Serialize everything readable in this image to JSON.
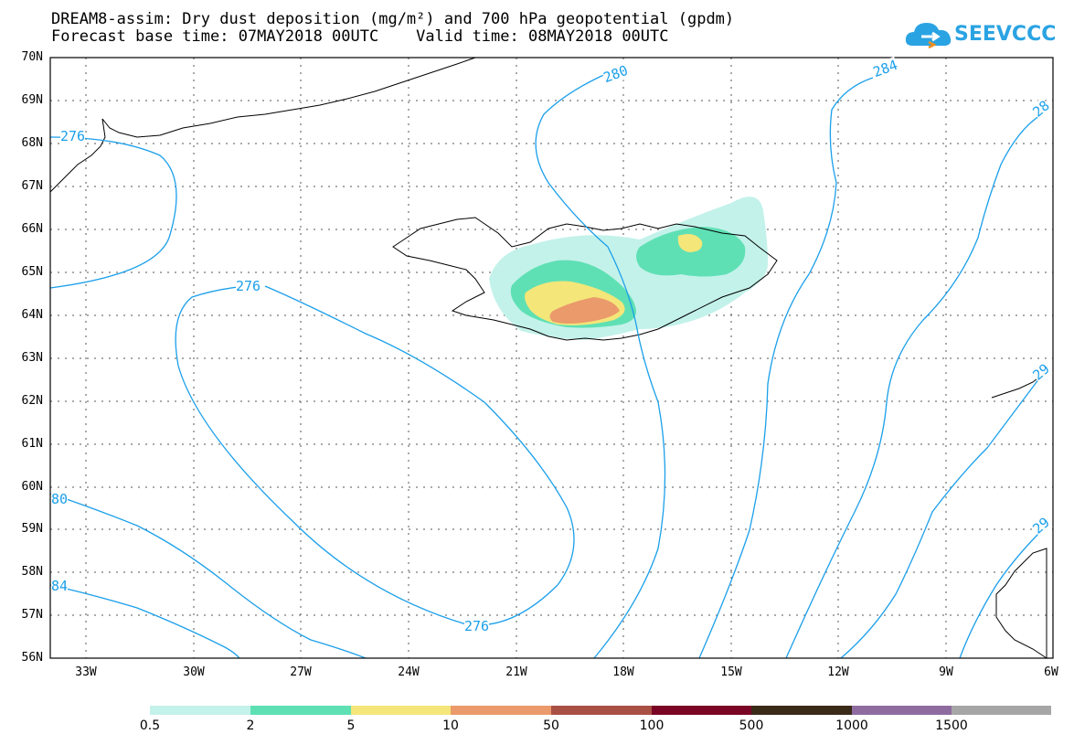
{
  "title": {
    "line1": "DREAM8-assim: Dry dust deposition (mg/m²) and 700 hPa geopotential (gpdm)",
    "line2": "Forecast base time: 07MAY2018 00UTC    Valid time: 08MAY2018 00UTC"
  },
  "logo": {
    "text": "SEEVCCC",
    "color": "#2aa3e3"
  },
  "axes": {
    "lat_labels": [
      "70N",
      "69N",
      "68N",
      "67N",
      "66N",
      "65N",
      "64N",
      "63N",
      "62N",
      "61N",
      "60N",
      "59N",
      "58N",
      "57N",
      "56N"
    ],
    "lon_labels": [
      "33W",
      "30W",
      "27W",
      "24W",
      "21W",
      "18W",
      "15W",
      "12W",
      "9W",
      "6W"
    ]
  },
  "contour_labels": [
    "276",
    "276",
    "276",
    "280",
    "284",
    "28",
    "29",
    "29",
    "80",
    "84"
  ],
  "colorbar": {
    "labels": [
      "0.5",
      "2",
      "5",
      "10",
      "50",
      "100",
      "500",
      "1000",
      "1500"
    ],
    "colors": [
      "#c3f2ea",
      "#5fe0b4",
      "#f4e679",
      "#ea9a6b",
      "#a85044",
      "#7a0626",
      "#3a2a18",
      "#8f6ca0",
      "#a6a6a6"
    ]
  },
  "colors": {
    "contour": "#1a9fea",
    "coast": "#000000"
  }
}
